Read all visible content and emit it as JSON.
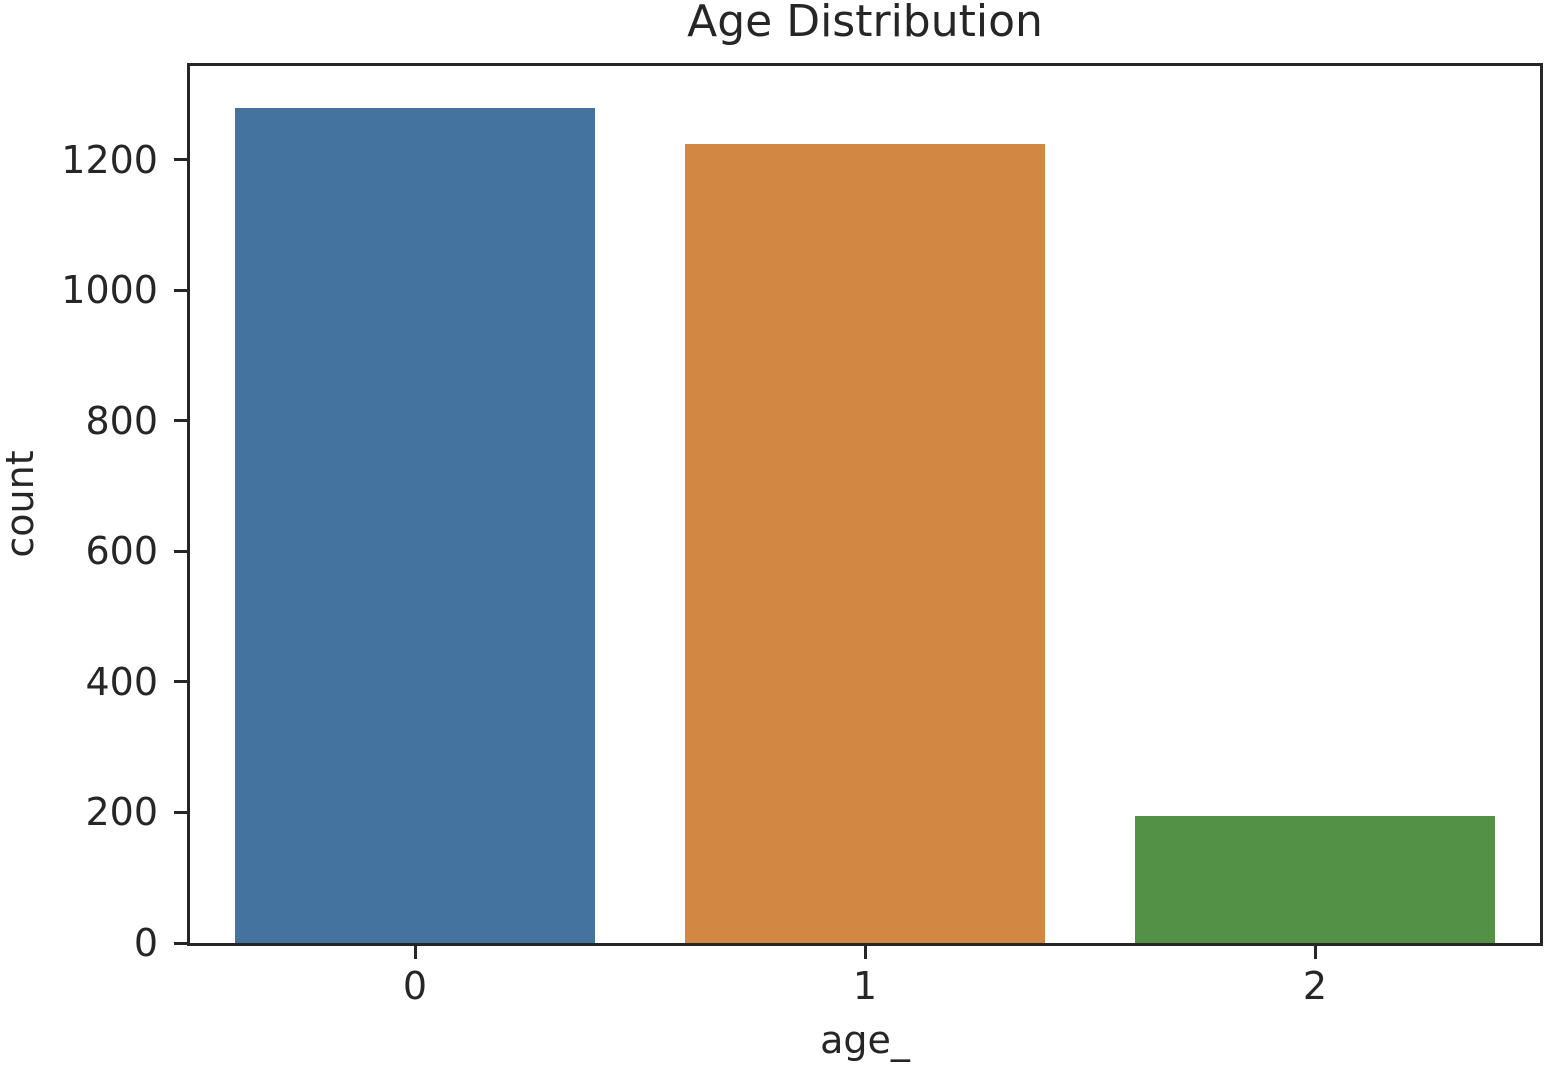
{
  "chart_data": {
    "type": "bar",
    "title": "Age Distribution",
    "xlabel": "age_",
    "ylabel": "count",
    "categories": [
      "0",
      "1",
      "2"
    ],
    "values": [
      1280,
      1225,
      195
    ],
    "bar_colors": [
      "#44739F",
      "#D28742",
      "#529146"
    ],
    "ylim": [
      0,
      1344
    ],
    "yticks": [
      0,
      200,
      400,
      600,
      800,
      1000,
      1200
    ],
    "grid": false,
    "legend_position": "none",
    "bar_width_fraction": 0.8,
    "spine_color": "#262626",
    "text_color": "#262626",
    "background_color": "#ffffff"
  }
}
